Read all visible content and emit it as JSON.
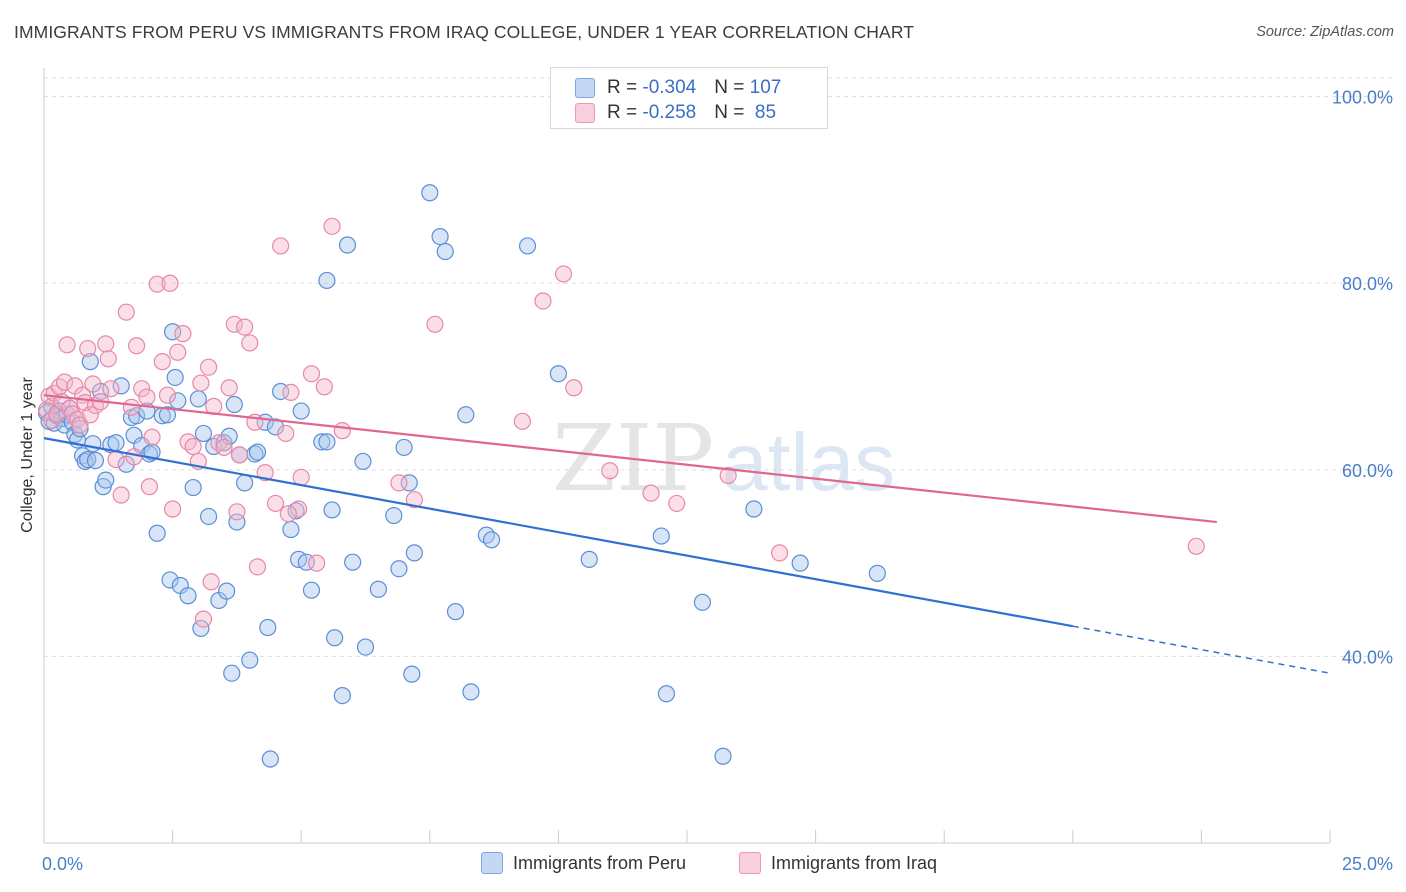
{
  "title": "IMMIGRANTS FROM PERU VS IMMIGRANTS FROM IRAQ COLLEGE, UNDER 1 YEAR CORRELATION CHART",
  "source": "Source: ZipAtlas.com",
  "watermark": {
    "zip": "ZIP",
    "atlas": "atlas"
  },
  "colors": {
    "peru_fill": "#a9c6ee",
    "peru_stroke": "#5b8fd6",
    "peru_line": "#3070d0",
    "iraq_fill": "#f5b9cc",
    "iraq_stroke": "#e888a7",
    "iraq_line": "#e0678f",
    "tick_label": "#4a7ec9",
    "grid": "#dddddd"
  },
  "legend": {
    "peru": {
      "r_label": "R = ",
      "r_value": "-0.304",
      "n_label": "N = ",
      "n_value": "107"
    },
    "iraq": {
      "r_label": "R = ",
      "r_value": "-0.258",
      "n_label": "N = ",
      "n_value": " 85"
    }
  },
  "chart_data": {
    "type": "scatter",
    "title": "IMMIGRANTS FROM PERU VS IMMIGRANTS FROM IRAQ COLLEGE, UNDER 1 YEAR CORRELATION CHART",
    "xlabel": "",
    "ylabel": "College, Under 1 year",
    "xlim": [
      0,
      25
    ],
    "ylim": [
      20,
      102
    ],
    "x_tick_labels": [
      "0.0%",
      "25.0%"
    ],
    "y_ticks": [
      40,
      60,
      80,
      100
    ],
    "y_tick_labels": [
      "40.0%",
      "60.0%",
      "80.0%",
      "100.0%"
    ],
    "grid": true,
    "legend_position": "top-center",
    "series": [
      {
        "name": "Immigrants from Peru",
        "r": -0.304,
        "n": 107,
        "trend": {
          "x0": 0,
          "y0": 63.4,
          "x1": 25,
          "y1": 38.2,
          "solid_until_x": 20
        },
        "points": [
          [
            0.05,
            66.1
          ],
          [
            0.1,
            65.2
          ],
          [
            0.15,
            66.8
          ],
          [
            0.2,
            65.0
          ],
          [
            0.25,
            65.8
          ],
          [
            0.3,
            66.3
          ],
          [
            0.35,
            65.5
          ],
          [
            0.4,
            64.8
          ],
          [
            0.45,
            65.9
          ],
          [
            0.5,
            66.6
          ],
          [
            0.55,
            65.1
          ],
          [
            0.6,
            63.8
          ],
          [
            0.65,
            63.2
          ],
          [
            0.7,
            64.4
          ],
          [
            0.75,
            61.5
          ],
          [
            0.8,
            60.9
          ],
          [
            0.85,
            61.1
          ],
          [
            0.9,
            71.6
          ],
          [
            0.95,
            62.8
          ],
          [
            1.0,
            61.0
          ],
          [
            1.1,
            68.4
          ],
          [
            1.15,
            58.2
          ],
          [
            1.2,
            58.9
          ],
          [
            1.3,
            62.7
          ],
          [
            1.4,
            62.9
          ],
          [
            1.5,
            69.0
          ],
          [
            1.6,
            60.6
          ],
          [
            1.7,
            65.6
          ],
          [
            1.75,
            63.7
          ],
          [
            1.8,
            65.8
          ],
          [
            1.9,
            62.6
          ],
          [
            2.0,
            66.3
          ],
          [
            2.05,
            61.7
          ],
          [
            2.1,
            61.9
          ],
          [
            2.2,
            53.2
          ],
          [
            2.3,
            65.8
          ],
          [
            2.4,
            65.9
          ],
          [
            2.45,
            48.2
          ],
          [
            2.5,
            74.8
          ],
          [
            2.55,
            69.9
          ],
          [
            2.6,
            67.4
          ],
          [
            2.65,
            47.6
          ],
          [
            2.8,
            46.5
          ],
          [
            2.9,
            58.1
          ],
          [
            3.0,
            67.6
          ],
          [
            3.05,
            43.0
          ],
          [
            3.1,
            63.9
          ],
          [
            3.2,
            55.0
          ],
          [
            3.3,
            62.5
          ],
          [
            3.4,
            46.0
          ],
          [
            3.5,
            62.9
          ],
          [
            3.55,
            47.0
          ],
          [
            3.6,
            63.6
          ],
          [
            3.65,
            38.2
          ],
          [
            3.7,
            67.0
          ],
          [
            3.75,
            54.4
          ],
          [
            3.8,
            61.6
          ],
          [
            3.9,
            58.6
          ],
          [
            4.0,
            39.6
          ],
          [
            4.1,
            61.7
          ],
          [
            4.15,
            61.9
          ],
          [
            4.3,
            65.1
          ],
          [
            4.35,
            43.1
          ],
          [
            4.4,
            29.0
          ],
          [
            4.5,
            64.6
          ],
          [
            4.6,
            68.4
          ],
          [
            4.8,
            53.6
          ],
          [
            4.9,
            55.6
          ],
          [
            4.95,
            50.4
          ],
          [
            5.0,
            66.3
          ],
          [
            5.1,
            50.1
          ],
          [
            5.2,
            47.1
          ],
          [
            5.4,
            63.0
          ],
          [
            5.5,
            80.3
          ],
          [
            5.6,
            55.7
          ],
          [
            5.65,
            42.0
          ],
          [
            5.8,
            35.8
          ],
          [
            5.9,
            84.1
          ],
          [
            6.0,
            50.1
          ],
          [
            6.2,
            60.9
          ],
          [
            6.25,
            41.0
          ],
          [
            6.5,
            47.2
          ],
          [
            6.8,
            55.1
          ],
          [
            6.9,
            49.4
          ],
          [
            7.0,
            62.4
          ],
          [
            7.1,
            58.6
          ],
          [
            7.15,
            38.1
          ],
          [
            7.2,
            51.1
          ],
          [
            7.5,
            89.7
          ],
          [
            7.7,
            85.0
          ],
          [
            7.8,
            83.4
          ],
          [
            8.0,
            44.8
          ],
          [
            8.2,
            65.9
          ],
          [
            8.3,
            36.2
          ],
          [
            8.6,
            53.0
          ],
          [
            8.7,
            52.5
          ],
          [
            9.4,
            84.0
          ],
          [
            10.0,
            70.3
          ],
          [
            10.6,
            50.4
          ],
          [
            12.0,
            52.9
          ],
          [
            12.1,
            36.0
          ],
          [
            12.8,
            45.8
          ],
          [
            13.2,
            29.3
          ],
          [
            13.8,
            55.8
          ],
          [
            14.7,
            50.0
          ],
          [
            16.2,
            48.9
          ],
          [
            5.5,
            63.0
          ]
        ]
      },
      {
        "name": "Immigrants from Iraq",
        "r": -0.258,
        "n": 85,
        "trend": {
          "x0": 0,
          "y0": 68.0,
          "x1": 22.8,
          "y1": 54.4
        },
        "points": [
          [
            0.05,
            66.4
          ],
          [
            0.1,
            67.9
          ],
          [
            0.15,
            65.3
          ],
          [
            0.2,
            68.2
          ],
          [
            0.25,
            66.0
          ],
          [
            0.3,
            68.9
          ],
          [
            0.35,
            67.3
          ],
          [
            0.4,
            69.4
          ],
          [
            0.45,
            73.4
          ],
          [
            0.5,
            66.6
          ],
          [
            0.55,
            66.0
          ],
          [
            0.6,
            69.0
          ],
          [
            0.65,
            65.4
          ],
          [
            0.7,
            64.8
          ],
          [
            0.75,
            68.0
          ],
          [
            0.8,
            67.2
          ],
          [
            0.85,
            73.0
          ],
          [
            0.9,
            65.9
          ],
          [
            0.95,
            69.2
          ],
          [
            1.0,
            66.9
          ],
          [
            1.1,
            67.3
          ],
          [
            1.2,
            73.5
          ],
          [
            1.25,
            71.9
          ],
          [
            1.3,
            68.7
          ],
          [
            1.4,
            61.1
          ],
          [
            1.5,
            57.3
          ],
          [
            1.6,
            76.9
          ],
          [
            1.7,
            66.7
          ],
          [
            1.75,
            61.4
          ],
          [
            1.8,
            73.3
          ],
          [
            1.9,
            68.7
          ],
          [
            2.0,
            67.8
          ],
          [
            2.05,
            58.2
          ],
          [
            2.1,
            63.5
          ],
          [
            2.2,
            79.9
          ],
          [
            2.3,
            71.6
          ],
          [
            2.4,
            68.0
          ],
          [
            2.45,
            80.0
          ],
          [
            2.5,
            55.8
          ],
          [
            2.6,
            72.6
          ],
          [
            2.7,
            74.6
          ],
          [
            2.8,
            63.0
          ],
          [
            2.9,
            62.5
          ],
          [
            3.0,
            60.9
          ],
          [
            3.05,
            69.3
          ],
          [
            3.1,
            44.0
          ],
          [
            3.2,
            71.0
          ],
          [
            3.25,
            48.0
          ],
          [
            3.3,
            66.8
          ],
          [
            3.4,
            62.9
          ],
          [
            3.5,
            62.4
          ],
          [
            3.6,
            68.8
          ],
          [
            3.7,
            75.6
          ],
          [
            3.75,
            55.5
          ],
          [
            3.8,
            61.6
          ],
          [
            3.9,
            75.3
          ],
          [
            4.0,
            73.6
          ],
          [
            4.1,
            65.1
          ],
          [
            4.15,
            49.6
          ],
          [
            4.3,
            59.7
          ],
          [
            4.5,
            56.4
          ],
          [
            4.6,
            84.0
          ],
          [
            4.7,
            63.9
          ],
          [
            4.8,
            68.3
          ],
          [
            4.95,
            55.8
          ],
          [
            5.0,
            59.2
          ],
          [
            5.2,
            70.3
          ],
          [
            5.3,
            50.0
          ],
          [
            5.45,
            68.9
          ],
          [
            5.6,
            86.1
          ],
          [
            5.8,
            64.2
          ],
          [
            6.9,
            58.6
          ],
          [
            7.2,
            56.8
          ],
          [
            7.6,
            75.6
          ],
          [
            9.3,
            65.2
          ],
          [
            9.7,
            78.1
          ],
          [
            10.1,
            81.0
          ],
          [
            10.3,
            68.8
          ],
          [
            11.0,
            59.9
          ],
          [
            11.8,
            57.5
          ],
          [
            12.3,
            56.4
          ],
          [
            13.3,
            59.4
          ],
          [
            14.3,
            51.1
          ],
          [
            22.4,
            51.8
          ],
          [
            4.75,
            55.3
          ]
        ]
      }
    ]
  }
}
